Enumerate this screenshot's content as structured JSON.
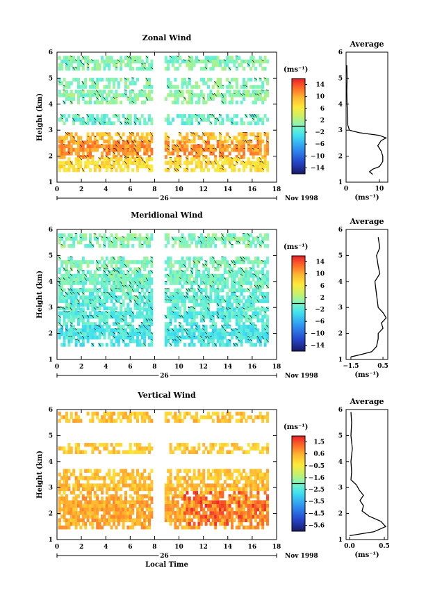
{
  "chart_data": [
    {
      "type": "heatmap",
      "title": "Zonal Wind",
      "ylabel": "Height (km)",
      "ylim": [
        1,
        6
      ],
      "xlim": [
        0,
        18
      ],
      "yticks": [
        "1",
        "2",
        "3",
        "4",
        "5",
        "6"
      ],
      "xticks": [
        "0",
        "2",
        "4",
        "6",
        "8",
        "10",
        "12",
        "14",
        "16",
        "18"
      ],
      "date_label": "26",
      "month_label": "Nov 1998",
      "colorbar": {
        "unit": "(ms⁻¹)",
        "ticks": [
          "14",
          "10",
          "6",
          "2",
          "−2",
          "−6",
          "−10",
          "−14"
        ],
        "range": [
          -16,
          16
        ]
      },
      "data_gap_hours": [
        7.8,
        8.8
      ],
      "bands": [
        {
          "y": [
            5.3,
            5.8
          ],
          "value": 0.5
        },
        {
          "y": [
            4.6,
            4.95
          ],
          "value": 0.5
        },
        {
          "y": [
            4.0,
            4.55
          ],
          "value": 0.8
        },
        {
          "y": [
            3.2,
            3.5
          ],
          "value": -0.6
        },
        {
          "y": [
            2.5,
            2.85
          ],
          "value": 9
        },
        {
          "y": [
            1.9,
            2.5
          ],
          "value": 11
        },
        {
          "y": [
            1.4,
            1.9
          ],
          "value": 7
        }
      ],
      "profile": {
        "title": "Average",
        "xlabel": "(ms⁻¹)",
        "xlim": [
          0,
          12.5
        ],
        "xticks": [
          "0",
          "10"
        ],
        "yticks": [
          "1",
          "2",
          "3",
          "4",
          "5",
          "6"
        ],
        "height": [
          1.3,
          1.4,
          1.5,
          1.6,
          1.8,
          2.0,
          2.2,
          2.4,
          2.6,
          2.7,
          2.8,
          2.9,
          3.0,
          3.2,
          3.5,
          4.0,
          4.5,
          5.0,
          5.5
        ],
        "value": [
          8,
          7,
          8,
          10,
          11,
          11,
          10.5,
          9.5,
          10.5,
          12,
          10,
          4,
          1,
          0.5,
          0.5,
          0.3,
          0.2,
          0.3,
          0.2
        ]
      }
    },
    {
      "type": "heatmap",
      "title": "Meridional Wind",
      "ylabel": "Height (km)",
      "ylim": [
        1,
        6
      ],
      "xlim": [
        0,
        18
      ],
      "yticks": [
        "1",
        "2",
        "3",
        "4",
        "5",
        "6"
      ],
      "xticks": [
        "0",
        "2",
        "4",
        "6",
        "8",
        "10",
        "12",
        "14",
        "16",
        "18"
      ],
      "date_label": "26",
      "month_label": "Nov 1998",
      "colorbar": {
        "unit": "(ms⁻¹)",
        "ticks": [
          "14",
          "10",
          "6",
          "2",
          "−2",
          "−6",
          "−10",
          "−14"
        ],
        "range": [
          -16,
          16
        ]
      },
      "data_gap_hours": [
        7.8,
        8.8
      ],
      "bands": [
        {
          "y": [
            5.3,
            5.8
          ],
          "value": 0.4
        },
        {
          "y": [
            4.4,
            4.9
          ],
          "value": 0.2
        },
        {
          "y": [
            3.6,
            4.4
          ],
          "value": -0.3
        },
        {
          "y": [
            2.9,
            3.6
          ],
          "value": -1.2
        },
        {
          "y": [
            2.3,
            2.9
          ],
          "value": -1.5
        },
        {
          "y": [
            1.5,
            2.3
          ],
          "value": -2.2
        }
      ],
      "profile": {
        "title": "Average",
        "xlabel": "(ms⁻¹)",
        "xlim": [
          -1.8,
          0.8
        ],
        "xticks": [
          "−1.5",
          "0.5"
        ],
        "yticks": [
          "1",
          "2",
          "3",
          "4",
          "5",
          "6"
        ],
        "height": [
          1.1,
          1.2,
          1.3,
          1.5,
          1.8,
          2.0,
          2.2,
          2.4,
          2.6,
          2.8,
          3.0,
          3.5,
          4.0,
          4.3,
          4.6,
          5.0,
          5.3,
          5.7
        ],
        "value": [
          -1.5,
          -0.8,
          -0.2,
          0.1,
          0.2,
          0.2,
          0.5,
          0.4,
          0.7,
          0.5,
          0.2,
          0.1,
          0.0,
          0.3,
          0.2,
          0.1,
          0.3,
          0.2
        ]
      }
    },
    {
      "type": "heatmap",
      "title": "Vertical Wind",
      "ylabel": "Height (km)",
      "xlabel": "Local Time",
      "ylim": [
        1,
        6
      ],
      "xlim": [
        0,
        18
      ],
      "yticks": [
        "1",
        "2",
        "3",
        "4",
        "5",
        "6"
      ],
      "xticks": [
        "0",
        "2",
        "4",
        "6",
        "8",
        "10",
        "12",
        "14",
        "16",
        "18"
      ],
      "date_label": "26",
      "month_label": "Nov 1998",
      "colorbar": {
        "unit": "(ms⁻¹)",
        "ticks": [
          "1.5",
          "0.6",
          "−0.5",
          "−1.6",
          "−2.5",
          "−3.5",
          "−4.5",
          "−5.6"
        ],
        "range": [
          -6,
          2
        ]
      },
      "data_gap_hours": [
        7.8,
        8.8
      ],
      "bands": [
        {
          "y": [
            5.5,
            5.9
          ],
          "value": 0.2
        },
        {
          "y": [
            4.3,
            4.7
          ],
          "value": 0.1
        },
        {
          "y": [
            3.3,
            3.6
          ],
          "value": 0.2
        },
        {
          "y": [
            2.6,
            3.3
          ],
          "value": 0.3
        },
        {
          "y": [
            1.4,
            2.6
          ],
          "value": 0.5
        }
      ],
      "hot_region": {
        "x": [
          10.2,
          17.2
        ],
        "y": [
          1.4,
          2.8
        ],
        "value": 1.3
      },
      "profile": {
        "title": "Average",
        "xlabel": "(ms⁻¹)",
        "xlim": [
          -0.05,
          0.55
        ],
        "xticks": [
          "0.0",
          "0.5"
        ],
        "yticks": [
          "1",
          "2",
          "3",
          "4",
          "5",
          "6"
        ],
        "height": [
          1.15,
          1.3,
          1.5,
          1.7,
          1.9,
          2.1,
          2.3,
          2.5,
          2.7,
          2.9,
          3.1,
          3.3,
          3.6,
          4.0,
          4.5,
          5.0,
          5.5,
          5.9
        ],
        "value": [
          0.0,
          0.35,
          0.52,
          0.45,
          0.28,
          0.18,
          0.2,
          0.15,
          0.2,
          0.14,
          0.1,
          0.02,
          0.03,
          0.02,
          0.04,
          0.02,
          0.03,
          0.02
        ]
      }
    }
  ]
}
